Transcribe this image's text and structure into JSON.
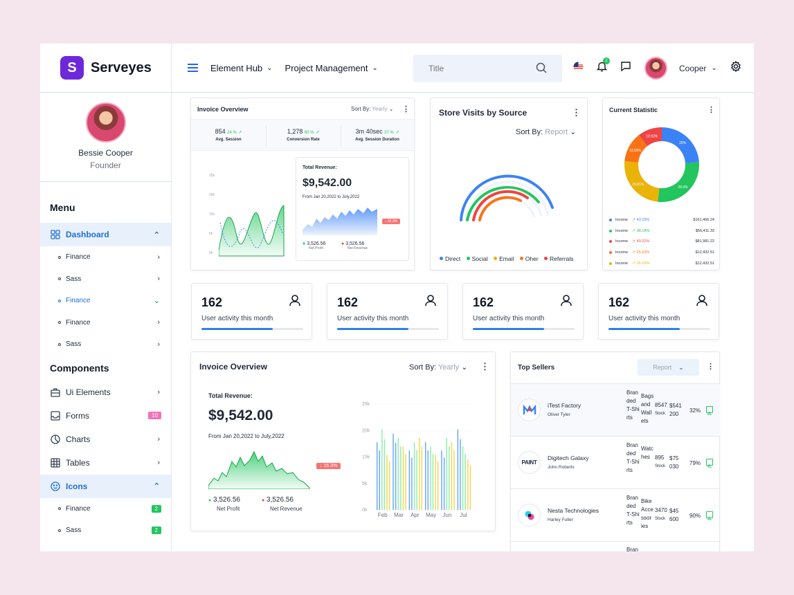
{
  "brand": {
    "logo_letter": "S",
    "name": "Serveyes",
    "accent": "#6d28d9"
  },
  "profile": {
    "name": "Bessie Cooper",
    "role": "Founder"
  },
  "sidebar": {
    "menu_title": "Menu",
    "dashboard": {
      "label": "Dashboard",
      "icon": "grid-icon",
      "children": [
        {
          "label": "Finance",
          "chevron": "right"
        },
        {
          "label": "Sass",
          "chevron": "right"
        },
        {
          "label": "Finance",
          "chevron": "down"
        },
        {
          "label": "Finance",
          "chevron": "right"
        },
        {
          "label": "Sass",
          "chevron": "right"
        }
      ]
    },
    "components_title": "Components",
    "components": [
      {
        "label": "Ui Elements",
        "icon": "briefcase-icon"
      },
      {
        "label": "Forms",
        "icon": "inbox-icon",
        "badge": "10"
      },
      {
        "label": "Charts",
        "icon": "pie-chart-icon"
      },
      {
        "label": "Tables",
        "icon": "table-icon"
      }
    ],
    "icons": {
      "label": "Icons",
      "icon": "smile-icon",
      "children": [
        {
          "label": "Finance",
          "badge": "2"
        },
        {
          "label": "Sass",
          "badge": "2"
        }
      ]
    }
  },
  "header": {
    "nav1": "Element Hub",
    "nav2": "Project Management",
    "search_placeholder": "Title",
    "notification_count": "2",
    "user_name": "Cooper"
  },
  "invoice_small": {
    "title": "Invoice Overview",
    "sort_label": "Sort By:",
    "sort_value": "Yearly",
    "metrics": [
      {
        "value": "854",
        "change": "24 %",
        "label": "Avg. Session"
      },
      {
        "value": "1,278",
        "change": "60 %",
        "label": "Conversion Rate"
      },
      {
        "value": "3m 40sec",
        "change": "37 %",
        "label": "Avg. Session Duration"
      }
    ],
    "y_ticks": [
      "25k",
      "20k",
      "15k",
      "5k",
      "0k"
    ],
    "revenue_label": "Total Revenue:",
    "revenue_value": "$9,542.00",
    "range": "From Jan 20,2022 to July,2022",
    "change_badge": "16.3%",
    "net_profit_value": "3,526.56",
    "net_profit_label": "Net Profit",
    "net_revenue_value": "3,526.56",
    "net_revenue_label": "Net Revenue"
  },
  "store_visits": {
    "title": "Store Visits by Source",
    "sort_label": "Sort By:",
    "sort_value": "Report",
    "legend": [
      {
        "label": "Direct",
        "color": "#3b82f6"
      },
      {
        "label": "Social",
        "color": "#22c55e"
      },
      {
        "label": "Email",
        "color": "#eab308"
      },
      {
        "label": "Oher",
        "color": "#f97316"
      },
      {
        "label": "Referrals",
        "color": "#ef4444"
      }
    ]
  },
  "current_statistic": {
    "title": "Current Statistic",
    "slices": [
      {
        "label": "25%",
        "value": 25,
        "color": "#3b82f6"
      },
      {
        "label": "28.9%",
        "value": 28.9,
        "color": "#22c55e"
      },
      {
        "label": "25.81%",
        "value": 25.81,
        "color": "#eab308"
      },
      {
        "label": "13.59%",
        "value": 13.59,
        "color": "#f97316"
      },
      {
        "label": "10.93%",
        "value": 10.93,
        "color": "#ef4444"
      }
    ],
    "rows": [
      {
        "label": "Income",
        "change": "43.29%",
        "value": "$161,466.24",
        "color": "#3b82f6",
        "change_color": "#3b82f6"
      },
      {
        "label": "Income",
        "change": "38.18%",
        "value": "$56,411.33",
        "color": "#22c55e",
        "change_color": "#22c55e"
      },
      {
        "label": "Income",
        "change": "40.22%",
        "value": "$81,981.22",
        "color": "#ef4444",
        "change_color": "#ef4444"
      },
      {
        "label": "Income",
        "change": "25.53%",
        "value": "$12,432.51",
        "color": "#f97316",
        "change_color": "#f97316"
      },
      {
        "label": "Income",
        "change": "25.53%",
        "value": "$12,432.51",
        "color": "#eab308",
        "change_color": "#eab308"
      }
    ]
  },
  "stats": [
    {
      "value": "162",
      "label": "User activity this month",
      "progress": 0.7
    },
    {
      "value": "162",
      "label": "User activity this month",
      "progress": 0.7
    },
    {
      "value": "162",
      "label": "User activity this month",
      "progress": 0.7
    },
    {
      "value": "162",
      "label": "User activity this month",
      "progress": 0.7
    }
  ],
  "invoice_large": {
    "title": "Invoice Overview",
    "sort_label": "Sort By:",
    "sort_value": "Yearly",
    "revenue_label": "Total Revenue:",
    "revenue_value": "$9,542.00",
    "range": "From Jan 20,2022 to July,2022",
    "change_badge": "16.3%",
    "net_profit_value": "3,526.56",
    "net_profit_label": "Net Profit",
    "net_revenue_value": "3,526.56",
    "net_revenue_label": "Net Revenue"
  },
  "chart_data": {
    "type": "bar",
    "categories": [
      "Feb",
      "Mar",
      "Apr",
      "May",
      "Jun",
      "Jul"
    ],
    "y_ticks": [
      "25k",
      "20k",
      "15k",
      "5k",
      "0k"
    ],
    "ylim": [
      0,
      25
    ],
    "series": [
      {
        "color": "#60a5fa",
        "values": [
          16,
          18,
          14,
          16,
          14,
          19
        ]
      },
      {
        "color": "#86efac",
        "values": [
          19,
          17,
          16,
          15,
          17,
          15
        ]
      },
      {
        "color": "#fcd34d",
        "values": [
          13,
          15,
          17,
          13,
          16,
          12
        ]
      }
    ]
  },
  "top_sellers": {
    "title": "Top Sellers",
    "report_label": "Report",
    "rows": [
      {
        "company": "iTest Factory",
        "person": "Oliver Tyler",
        "category": "Bran ded T-Shi rts",
        "product": "Bags and Wall ets",
        "qty": "8547",
        "stock": "Stock",
        "price": "$541 200",
        "pct": "32%",
        "logo": "M"
      },
      {
        "company": "Digitech Galaxy",
        "person": "John Roberts",
        "category": "Bran ded T-Shi rts",
        "product": "Watc hes",
        "qty": "895",
        "stock": "Stock",
        "price": "$75 030",
        "pct": "79%",
        "logo": "PAINT"
      },
      {
        "company": "Nesta Technologies",
        "person": "Harley Fuller",
        "category": "Bran ded T-Shi rts",
        "product": "Bike Acce ssor ies",
        "qty": "3470",
        "stock": "Stock",
        "price": "$45 600",
        "pct": "90%",
        "logo": "B"
      }
    ],
    "partial_row": "Bran"
  }
}
